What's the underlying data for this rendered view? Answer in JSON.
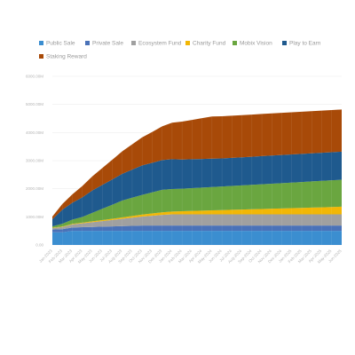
{
  "chart_data": {
    "type": "area",
    "stacked": true,
    "legend": "top-left",
    "grid": true,
    "ylim": [
      0,
      6000000000
    ],
    "y_ticks": [
      {
        "value": 0,
        "label": "0.00"
      },
      {
        "value": 1000000000,
        "label": "1000.00M"
      },
      {
        "value": 2000000000,
        "label": "2000.00M"
      },
      {
        "value": 3000000000,
        "label": "3000.00M"
      },
      {
        "value": 4000000000,
        "label": "4000.00M"
      },
      {
        "value": 5000000000,
        "label": "5000.00M"
      },
      {
        "value": 6000000000,
        "label": "6000.00M"
      }
    ],
    "categories": [
      "Jan-2023",
      "Feb-2023",
      "Mar-2023",
      "Apr-2023",
      "May-2023",
      "Jun-2023",
      "Jul-2023",
      "Aug-2023",
      "Sep-2023",
      "Oct-2023",
      "Nov-2023",
      "Dec-2023",
      "Jan-2024",
      "Feb-2024",
      "Mar-2024",
      "Apr-2024",
      "May-2024",
      "Jun-2024",
      "Jul-2024",
      "Aug-2024",
      "Sep-2024",
      "Oct-2024",
      "Nov-2024",
      "Dec-2024",
      "Jan-2025",
      "Feb-2025",
      "Mar-2025",
      "Apr-2025",
      "May-2025",
      "Jun-2025"
    ],
    "series": [
      {
        "name": "Public Sale",
        "color": "#3b8ed0",
        "values": [
          450000000,
          450000000,
          500000000,
          500000000,
          500000000,
          500000000,
          500000000,
          500000000,
          500000000,
          500000000,
          500000000,
          500000000,
          500000000,
          500000000,
          500000000,
          500000000,
          500000000,
          500000000,
          500000000,
          500000000,
          500000000,
          500000000,
          500000000,
          500000000,
          500000000,
          500000000,
          500000000,
          500000000,
          500000000,
          500000000
        ]
      },
      {
        "name": "Private Sale",
        "color": "#4a72b8",
        "values": [
          100000000,
          110000000,
          120000000,
          130000000,
          140000000,
          150000000,
          160000000,
          170000000,
          180000000,
          190000000,
          190000000,
          190000000,
          190000000,
          190000000,
          190000000,
          190000000,
          190000000,
          190000000,
          190000000,
          190000000,
          190000000,
          190000000,
          190000000,
          190000000,
          190000000,
          190000000,
          190000000,
          190000000,
          190000000,
          190000000
        ]
      },
      {
        "name": "Ecosystem Fund",
        "color": "#a0a0a0",
        "values": [
          50000000,
          80000000,
          110000000,
          140000000,
          170000000,
          200000000,
          230000000,
          260000000,
          290000000,
          320000000,
          350000000,
          380000000,
          400000000,
          400000000,
          400000000,
          400000000,
          400000000,
          400000000,
          400000000,
          400000000,
          400000000,
          400000000,
          400000000,
          400000000,
          400000000,
          400000000,
          400000000,
          400000000,
          400000000,
          400000000
        ]
      },
      {
        "name": "Charity Fund",
        "color": "#f2b705",
        "values": [
          10000000,
          15000000,
          20000000,
          25000000,
          30000000,
          35000000,
          40000000,
          50000000,
          60000000,
          70000000,
          80000000,
          90000000,
          100000000,
          110000000,
          120000000,
          130000000,
          140000000,
          150000000,
          160000000,
          170000000,
          180000000,
          190000000,
          200000000,
          210000000,
          220000000,
          230000000,
          240000000,
          250000000,
          260000000,
          270000000
        ]
      },
      {
        "name": "Mobix Vision",
        "color": "#6aa640",
        "values": [
          50000000,
          100000000,
          150000000,
          200000000,
          300000000,
          400000000,
          500000000,
          600000000,
          650000000,
          700000000,
          750000000,
          800000000,
          800000000,
          800000000,
          810000000,
          820000000,
          830000000,
          840000000,
          850000000,
          860000000,
          870000000,
          880000000,
          890000000,
          900000000,
          910000000,
          920000000,
          930000000,
          940000000,
          950000000,
          960000000
        ]
      },
      {
        "name": "Play to Earn",
        "color": "#1f5a8e",
        "values": [
          250000000,
          500000000,
          600000000,
          700000000,
          800000000,
          850000000,
          900000000,
          950000000,
          1000000000,
          1050000000,
          1050000000,
          1060000000,
          1060000000,
          1040000000,
          1030000000,
          1020000000,
          1010000000,
          1000000000,
          1000000000,
          1000000000,
          1000000000,
          1000000000,
          1000000000,
          1000000000,
          1000000000,
          1000000000,
          1000000000,
          1000000000,
          1000000000,
          1000000000
        ]
      },
      {
        "name": "Staking Reward",
        "color": "#a84a08",
        "values": [
          100000000,
          200000000,
          300000000,
          400000000,
          500000000,
          600000000,
          700000000,
          800000000,
          900000000,
          1000000000,
          1100000000,
          1200000000,
          1300000000,
          1350000000,
          1400000000,
          1450000000,
          1500000000,
          1500000000,
          1500000000,
          1500000000,
          1500000000,
          1500000000,
          1500000000,
          1500000000,
          1500000000,
          1500000000,
          1500000000,
          1500000000,
          1500000000,
          1500000000
        ]
      }
    ]
  }
}
